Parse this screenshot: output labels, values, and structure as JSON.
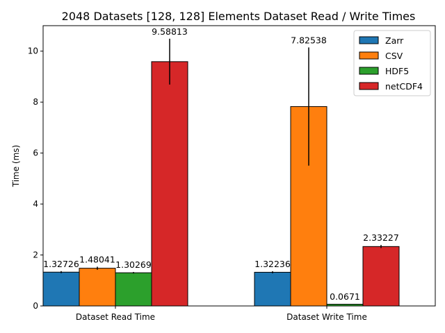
{
  "chart_data": {
    "type": "bar",
    "title": "2048 Datasets [128, 128] Elements Dataset Read / Write Times",
    "xlabel": "",
    "ylabel": "Time (ms)",
    "categories": [
      "Dataset Read Time",
      "Dataset Write Time"
    ],
    "ylim": [
      0,
      11
    ],
    "yticks": [
      0,
      2,
      4,
      6,
      8,
      10
    ],
    "grid": false,
    "legend_position": "top-right",
    "series": [
      {
        "name": "Zarr",
        "color": "#1f77b4",
        "values": [
          1.32726,
          1.32236
        ],
        "errors": [
          0.04,
          0.04
        ],
        "labels": [
          "1.32726",
          "1.32236"
        ]
      },
      {
        "name": "CSV",
        "color": "#ff7f0e",
        "values": [
          1.48041,
          7.82538
        ],
        "errors": [
          0.06,
          2.32
        ],
        "labels": [
          "1.48041",
          "7.82538"
        ]
      },
      {
        "name": "HDF5",
        "color": "#2ca02c",
        "values": [
          1.30269,
          0.0671
        ],
        "errors": [
          0.03,
          0.01
        ],
        "labels": [
          "1.30269",
          "0.0671"
        ]
      },
      {
        "name": "netCDF4",
        "color": "#d62728",
        "values": [
          9.58813,
          2.33227
        ],
        "errors": [
          0.9,
          0.06
        ],
        "labels": [
          "9.58813",
          "2.33227"
        ]
      }
    ]
  }
}
